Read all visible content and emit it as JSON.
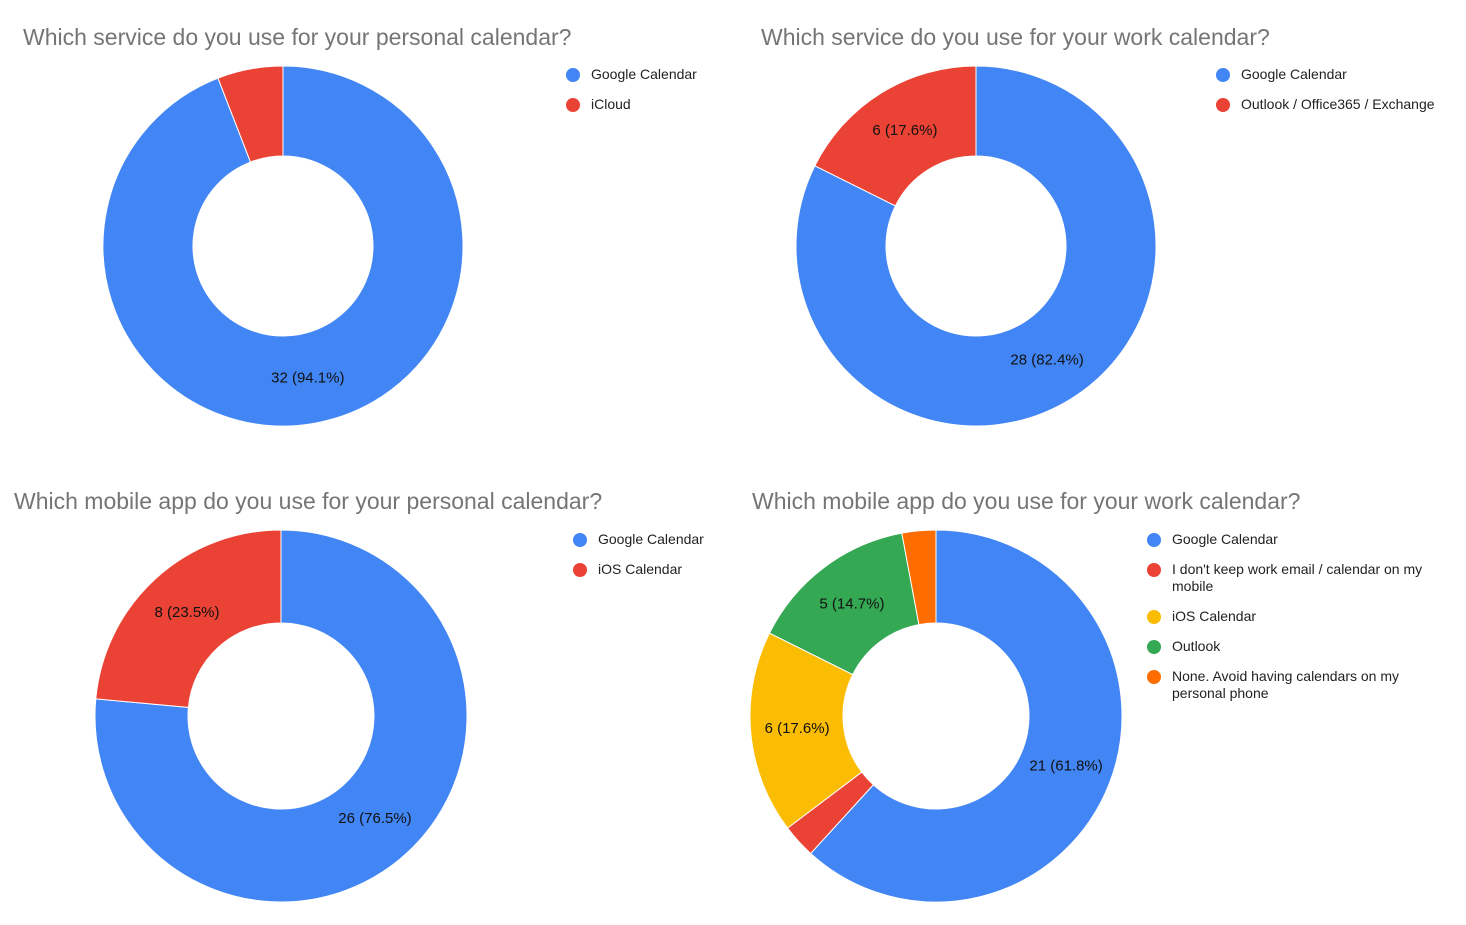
{
  "chart_data": [
    {
      "type": "pie",
      "title": "Which service do you use for your personal calendar?",
      "categories": [
        "Google Calendar",
        "iCloud"
      ],
      "values": [
        32,
        2
      ],
      "colors": [
        "#4285f4",
        "#ea4335"
      ],
      "data_labels": [
        "32 (94.1%)",
        ""
      ],
      "legend": "right"
    },
    {
      "type": "pie",
      "title": "Which service do you use for your work calendar?",
      "categories": [
        "Google Calendar",
        "Outlook / Office365 / Exchange"
      ],
      "values": [
        28,
        6
      ],
      "colors": [
        "#4285f4",
        "#ea4335"
      ],
      "data_labels": [
        "28 (82.4%)",
        "6 (17.6%)"
      ],
      "legend": "right"
    },
    {
      "type": "pie",
      "title": "Which mobile app do you use for your personal calendar?",
      "categories": [
        "Google Calendar",
        "iOS Calendar"
      ],
      "values": [
        26,
        8
      ],
      "colors": [
        "#4285f4",
        "#ea4335"
      ],
      "data_labels": [
        "26 (76.5%)",
        "8 (23.5%)"
      ],
      "legend": "right"
    },
    {
      "type": "pie",
      "title": "Which mobile app do you use for your work calendar?",
      "categories": [
        "Google Calendar",
        "I don't keep work email / calendar on my mobile",
        "iOS Calendar",
        "Outlook",
        "None. Avoid having calendars on my personal phone"
      ],
      "values": [
        21,
        1,
        6,
        5,
        1
      ],
      "colors": [
        "#4285f4",
        "#ea4335",
        "#fbbc04",
        "#34a853",
        "#ff6d01"
      ],
      "data_labels": [
        "21 (61.8%)",
        "",
        "6 (17.6%)",
        "5 (14.7%)",
        ""
      ],
      "legend": "right"
    }
  ]
}
